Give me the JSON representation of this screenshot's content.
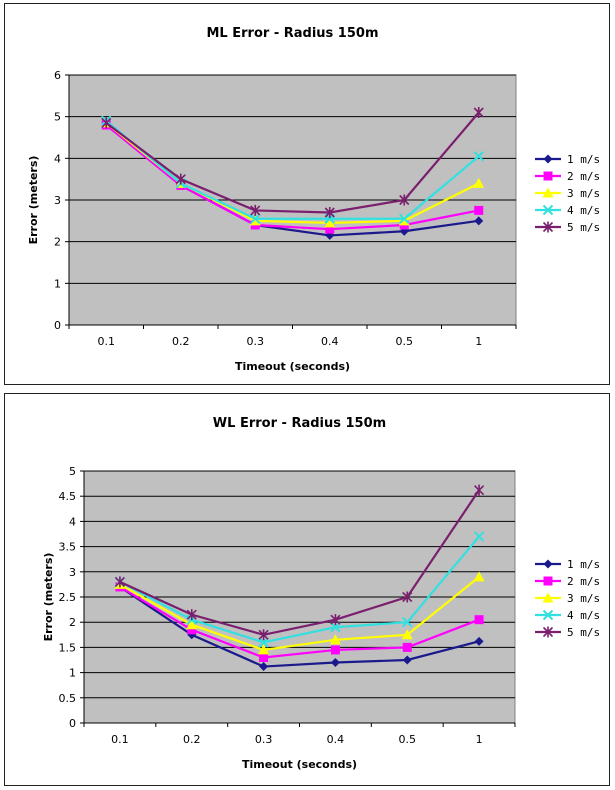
{
  "chart_data": [
    {
      "type": "line",
      "title": "ML Error - Radius 150m",
      "xlabel": "Timeout (seconds)",
      "ylabel": "Error (meters)",
      "categories": [
        "0.1",
        "0.2",
        "0.3",
        "0.4",
        "0.5",
        "1"
      ],
      "ylim": [
        0,
        6
      ],
      "yticks": [
        "0",
        "1",
        "2",
        "3",
        "4",
        "5",
        "6"
      ],
      "grid": true,
      "legend": "right",
      "series": [
        {
          "name": "1 m/s",
          "color": "#1a1a8c",
          "marker": "diamond",
          "values": [
            4.8,
            3.35,
            2.4,
            2.15,
            2.25,
            2.5
          ]
        },
        {
          "name": "2 m/s",
          "color": "#ff00ff",
          "marker": "square",
          "values": [
            4.8,
            3.35,
            2.4,
            2.3,
            2.4,
            2.75
          ]
        },
        {
          "name": "3 m/s",
          "color": "#ffff00",
          "marker": "triangle",
          "values": [
            4.85,
            3.4,
            2.5,
            2.45,
            2.5,
            3.4
          ]
        },
        {
          "name": "4 m/s",
          "color": "#33e0e0",
          "marker": "x",
          "values": [
            4.9,
            3.4,
            2.55,
            2.55,
            2.55,
            4.05
          ]
        },
        {
          "name": "5 m/s",
          "color": "#7a1f6e",
          "marker": "star",
          "values": [
            4.85,
            3.5,
            2.75,
            2.7,
            3.0,
            5.1
          ]
        }
      ]
    },
    {
      "type": "line",
      "title": "WL Error - Radius 150m",
      "xlabel": "Timeout (seconds)",
      "ylabel": "Error (meters)",
      "categories": [
        "0.1",
        "0.2",
        "0.3",
        "0.4",
        "0.5",
        "1"
      ],
      "ylim": [
        0,
        5
      ],
      "yticks": [
        "0",
        "0.5",
        "1",
        "1.5",
        "2",
        "2.5",
        "3",
        "3.5",
        "4",
        "4.5",
        "5"
      ],
      "grid": true,
      "legend": "right",
      "series": [
        {
          "name": "1 m/s",
          "color": "#1a1a8c",
          "marker": "diamond",
          "values": [
            2.7,
            1.75,
            1.12,
            1.2,
            1.25,
            1.62
          ]
        },
        {
          "name": "2 m/s",
          "color": "#ff00ff",
          "marker": "square",
          "values": [
            2.7,
            1.85,
            1.3,
            1.45,
            1.5,
            2.05
          ]
        },
        {
          "name": "3 m/s",
          "color": "#ffff00",
          "marker": "triangle",
          "values": [
            2.75,
            1.95,
            1.45,
            1.65,
            1.75,
            2.9
          ]
        },
        {
          "name": "4 m/s",
          "color": "#33e0e0",
          "marker": "x",
          "values": [
            2.8,
            2.05,
            1.6,
            1.9,
            2.0,
            3.7
          ]
        },
        {
          "name": "5 m/s",
          "color": "#7a1f6e",
          "marker": "star",
          "values": [
            2.8,
            2.15,
            1.75,
            2.05,
            2.5,
            4.62
          ]
        }
      ]
    }
  ]
}
